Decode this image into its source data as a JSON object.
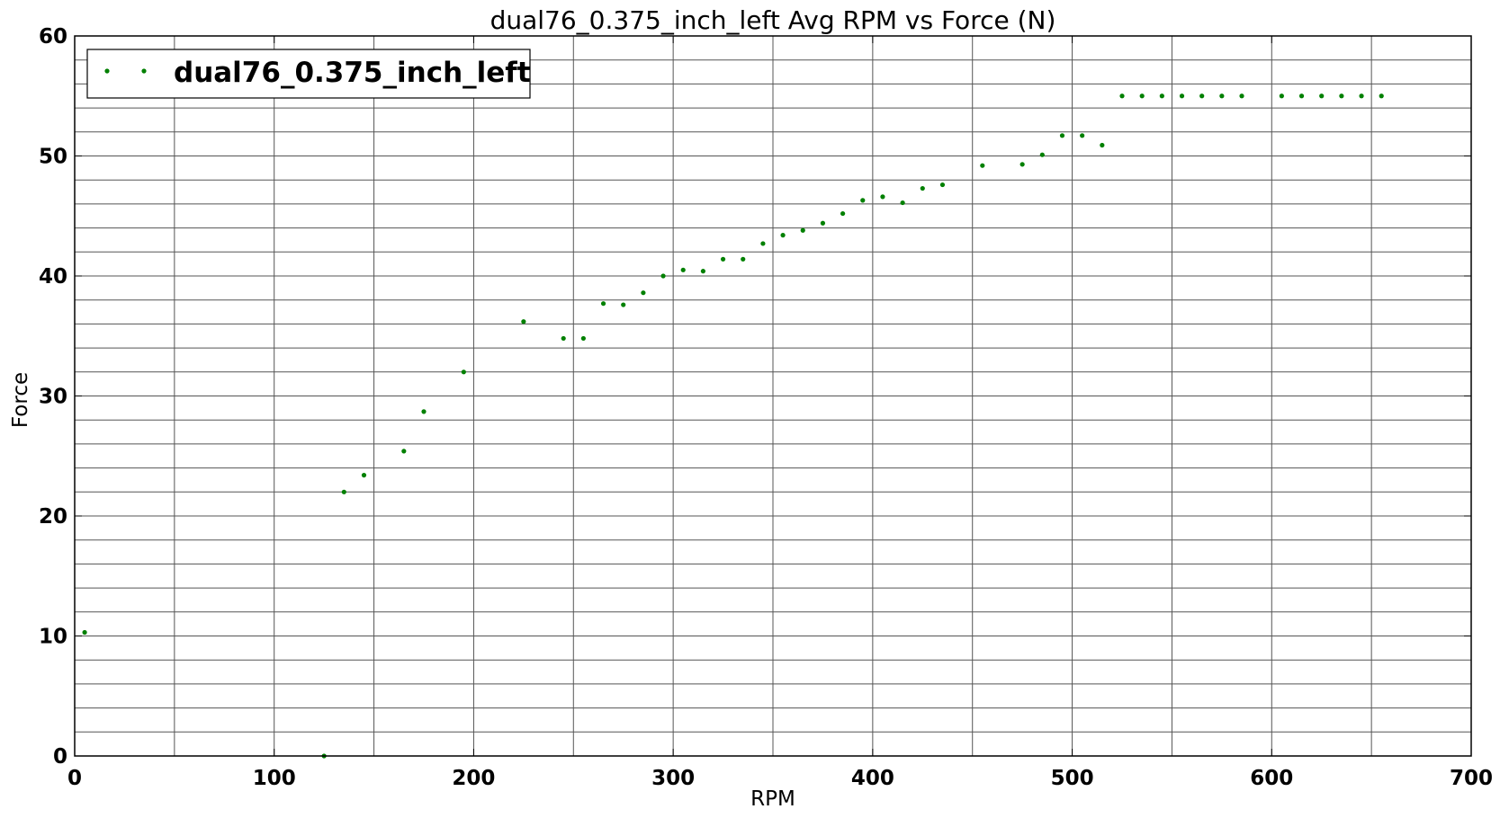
{
  "chart_data": {
    "type": "scatter",
    "title": "dual76_0.375_inch_left Avg RPM vs Force (N)",
    "xlabel": "RPM",
    "ylabel": "Force",
    "xlim": [
      0,
      700
    ],
    "ylim": [
      0,
      60
    ],
    "x_ticks": [
      0,
      100,
      200,
      300,
      400,
      500,
      600,
      700
    ],
    "x_tick_labels": [
      "0",
      "100",
      "200",
      "300",
      "400",
      "500",
      "600",
      "700"
    ],
    "y_ticks": [
      0,
      10,
      20,
      30,
      40,
      50,
      60
    ],
    "y_tick_labels": [
      "0",
      "10",
      "20",
      "30",
      "40",
      "50",
      "60"
    ],
    "x_grid_step": 50,
    "y_grid_step": 2,
    "grid": true,
    "legend_position": "top-left",
    "marker_color": "#008000",
    "series": [
      {
        "name": "dual76_0.375_inch_left",
        "points": [
          [
            5,
            10.3
          ],
          [
            125,
            0
          ],
          [
            135,
            22
          ],
          [
            145,
            23.4
          ],
          [
            165,
            25.4
          ],
          [
            175,
            28.7
          ],
          [
            195,
            32
          ],
          [
            225,
            36.2
          ],
          [
            245,
            34.8
          ],
          [
            255,
            34.8
          ],
          [
            265,
            37.7
          ],
          [
            275,
            37.6
          ],
          [
            285,
            38.6
          ],
          [
            295,
            40
          ],
          [
            305,
            40.5
          ],
          [
            315,
            40.4
          ],
          [
            325,
            41.4
          ],
          [
            335,
            41.4
          ],
          [
            345,
            42.7
          ],
          [
            355,
            43.4
          ],
          [
            365,
            43.8
          ],
          [
            375,
            44.4
          ],
          [
            385,
            45.2
          ],
          [
            395,
            46.3
          ],
          [
            405,
            46.6
          ],
          [
            415,
            46.1
          ],
          [
            425,
            47.3
          ],
          [
            435,
            47.6
          ],
          [
            455,
            49.2
          ],
          [
            475,
            49.3
          ],
          [
            485,
            50.1
          ],
          [
            495,
            51.7
          ],
          [
            505,
            51.7
          ],
          [
            515,
            50.9
          ],
          [
            525,
            55
          ],
          [
            535,
            55
          ],
          [
            545,
            55
          ],
          [
            555,
            55
          ],
          [
            565,
            55
          ],
          [
            575,
            55
          ],
          [
            585,
            55
          ],
          [
            605,
            55
          ],
          [
            615,
            55
          ],
          [
            625,
            55
          ],
          [
            635,
            55
          ],
          [
            645,
            55
          ],
          [
            655,
            55
          ]
        ]
      }
    ]
  }
}
